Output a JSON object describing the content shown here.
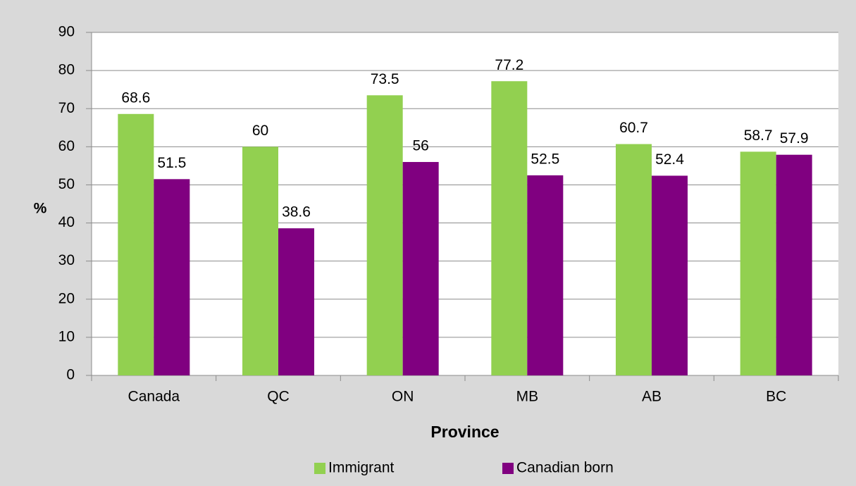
{
  "chart_data": {
    "type": "bar",
    "xlabel": "Province",
    "ylabel": "%",
    "categories": [
      "Canada",
      "QC",
      "ON",
      "MB",
      "AB",
      "BC"
    ],
    "series": [
      {
        "name": "Immigrant",
        "color": "#92d050",
        "values": [
          68.6,
          60,
          73.5,
          77.2,
          60.7,
          58.7
        ]
      },
      {
        "name": "Canadian born",
        "color": "#800080",
        "values": [
          51.5,
          38.6,
          56,
          52.5,
          52.4,
          57.9
        ]
      }
    ],
    "ylim": [
      0,
      90
    ],
    "yticks": [
      0,
      10,
      20,
      30,
      40,
      50,
      60,
      70,
      80,
      90
    ],
    "grid": true,
    "legend": "bottom"
  }
}
